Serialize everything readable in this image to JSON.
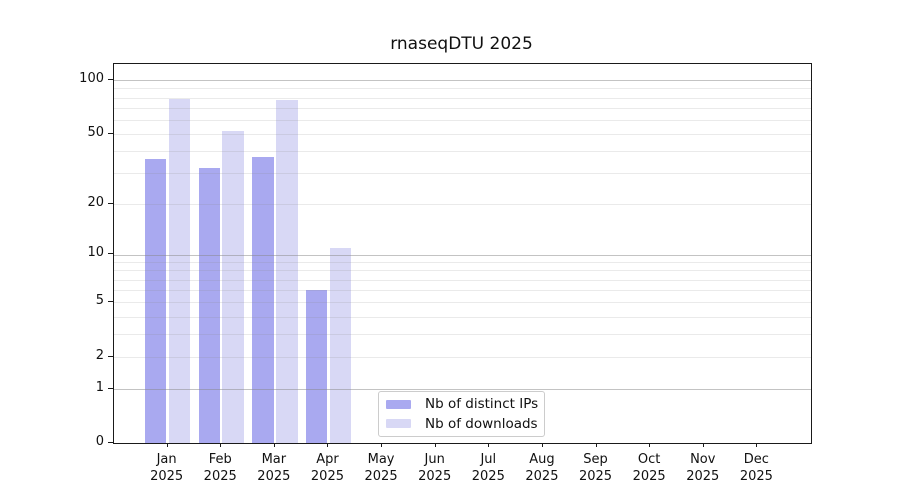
{
  "chart_data": {
    "type": "bar",
    "title": "rnaseqDTU 2025",
    "categories": [
      "Jan 2025",
      "Feb 2025",
      "Mar 2025",
      "Apr 2025",
      "May 2025",
      "Jun 2025",
      "Jul 2025",
      "Aug 2025",
      "Sep 2025",
      "Oct 2025",
      "Nov 2025",
      "Dec 2025"
    ],
    "series": [
      {
        "name": "Nb of distinct IPs",
        "color": "#a9a9f0",
        "values": [
          36,
          32,
          37,
          6,
          0,
          0,
          0,
          0,
          0,
          0,
          0,
          0
        ]
      },
      {
        "name": "Nb of downloads",
        "color": "#d8d8f5",
        "values": [
          78,
          52,
          77,
          11,
          0,
          0,
          0,
          0,
          0,
          0,
          0,
          0
        ]
      }
    ],
    "xlabel": "",
    "ylabel": "",
    "y_axis": {
      "scale": "log1p",
      "tick_values": [
        0,
        1,
        2,
        5,
        10,
        20,
        50,
        100
      ],
      "tick_labels": [
        "0",
        "1",
        "2",
        "5",
        "10",
        "20",
        "50",
        "100"
      ],
      "major_grid_values": [
        1,
        10,
        100
      ],
      "minor_grid_values": [
        2,
        3,
        4,
        5,
        6,
        7,
        8,
        9,
        20,
        30,
        40,
        50,
        60,
        70,
        80,
        90
      ],
      "ylim": [
        0,
        123
      ],
      "grid": true
    },
    "legend": {
      "position": "inside-bottom-center",
      "entries": [
        "Nb of distinct IPs",
        "Nb of downloads"
      ]
    }
  }
}
